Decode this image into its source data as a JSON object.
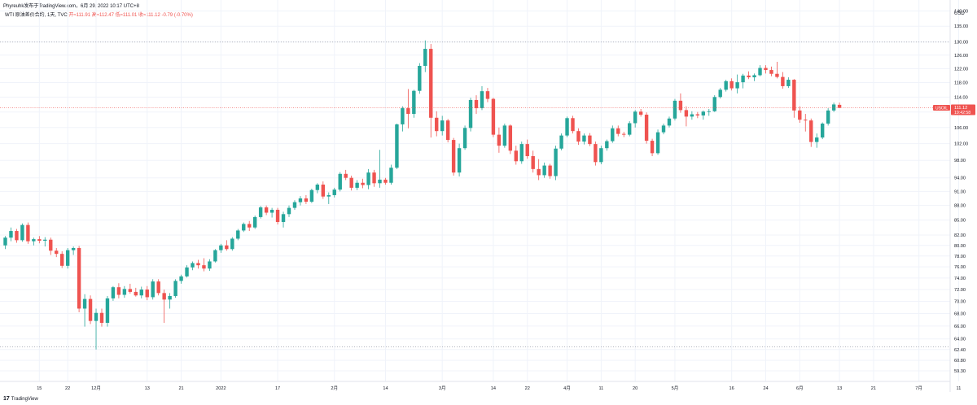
{
  "header": {
    "author_line": "Phyreuhk发布于TradingView.com，6月 29, 2022 10:17 UTC+8"
  },
  "legend": {
    "symbol": "WTI 原油差价合约, 1天, TVC",
    "ohlc": "开≈111.91 高≈112.47 低≈111.01 收≈111.12 -0.79 (-0.70%)"
  },
  "price_label": {
    "symbol": "USOIL",
    "value": "111.12",
    "countdown": "19:42:58"
  },
  "brand": {
    "logo": "17",
    "name": "TradingView"
  },
  "colors": {
    "up": "#26a69a",
    "down": "#ef5350",
    "grid": "#f0f3fa",
    "axis_text": "#131722",
    "dotted": "#b2b5be"
  },
  "chart_data": {
    "type": "candlestick",
    "currency": "USD",
    "y_axis_ticks": [
      59.3,
      60.8,
      62.4,
      64.0,
      66.0,
      68.0,
      70.0,
      72.0,
      74.0,
      76.0,
      78.0,
      80.0,
      82.0,
      85.0,
      88.0,
      91.0,
      94.0,
      98.0,
      102.0,
      106.0,
      110.0,
      114.0,
      118.0,
      122.0,
      126.0,
      130.0,
      135.0,
      140.0
    ],
    "y_axis_labels": [
      "59.30",
      "60.80",
      "62.40",
      "64.00",
      "66.00",
      "68.00",
      "70.00",
      "72.00",
      "74.00",
      "76.00",
      "78.00",
      "80.00",
      "82.00",
      "85.00",
      "88.00",
      "91.00",
      "94.00",
      "98.00",
      "102.00",
      "106.00",
      "110.00",
      "114.00",
      "118.00",
      "122.00",
      "126.00",
      "130.00",
      "135.00",
      "140.00"
    ],
    "y_range": [
      58.5,
      141.5
    ],
    "scale": "log",
    "x_axis_labels": [
      {
        "label": "15",
        "bar": 6
      },
      {
        "label": "22",
        "bar": 11
      },
      {
        "label": "12月",
        "bar": 16
      },
      {
        "label": "13",
        "bar": 25
      },
      {
        "label": "21",
        "bar": 31
      },
      {
        "label": "2022",
        "bar": 38
      },
      {
        "label": "17",
        "bar": 48
      },
      {
        "label": "2月",
        "bar": 58
      },
      {
        "label": "14",
        "bar": 67
      },
      {
        "label": "3月",
        "bar": 77
      },
      {
        "label": "14",
        "bar": 86
      },
      {
        "label": "22",
        "bar": 92
      },
      {
        "label": "4月",
        "bar": 99
      },
      {
        "label": "11",
        "bar": 105
      },
      {
        "label": "20",
        "bar": 111
      },
      {
        "label": "5月",
        "bar": 118
      },
      {
        "label": "16",
        "bar": 128
      },
      {
        "label": "24",
        "bar": 134
      },
      {
        "label": "6月",
        "bar": 140
      },
      {
        "label": "13",
        "bar": 147
      },
      {
        "label": "21",
        "bar": 153
      },
      {
        "label": "7月",
        "bar": 161
      },
      {
        "label": "11",
        "bar": 168
      }
    ],
    "horizontal_levels": [
      130.0,
      62.8
    ],
    "last_price": 111.12,
    "candles": [
      [
        80.0,
        81.8,
        79.3,
        81.5
      ],
      [
        81.5,
        83.5,
        80.8,
        82.8
      ],
      [
        82.8,
        83.2,
        80.5,
        81.0
      ],
      [
        81.0,
        84.3,
        80.7,
        84.0
      ],
      [
        84.0,
        84.5,
        80.3,
        80.8
      ],
      [
        80.8,
        81.5,
        80.0,
        81.2
      ],
      [
        81.2,
        81.8,
        80.4,
        80.9
      ],
      [
        80.9,
        81.6,
        79.8,
        81.1
      ],
      [
        81.1,
        81.5,
        78.2,
        79.0
      ],
      [
        79.0,
        79.5,
        77.8,
        78.4
      ],
      [
        78.4,
        78.9,
        75.8,
        76.2
      ],
      [
        76.2,
        79.5,
        75.7,
        79.1
      ],
      [
        79.1,
        79.8,
        78.2,
        79.5
      ],
      [
        79.5,
        79.9,
        68.2,
        68.8
      ],
      [
        68.8,
        71.2,
        65.9,
        70.4
      ],
      [
        70.4,
        71.0,
        66.3,
        66.8
      ],
      [
        66.8,
        68.8,
        62.4,
        68.1
      ],
      [
        68.1,
        68.8,
        65.9,
        66.5
      ],
      [
        66.5,
        70.9,
        65.9,
        70.5
      ],
      [
        70.5,
        72.6,
        70.1,
        72.4
      ],
      [
        72.4,
        73.1,
        70.5,
        71.1
      ],
      [
        71.1,
        72.6,
        70.6,
        72.1
      ],
      [
        72.1,
        73.0,
        71.3,
        71.6
      ],
      [
        71.6,
        72.3,
        70.8,
        71.0
      ],
      [
        71.0,
        72.5,
        70.5,
        72.0
      ],
      [
        72.0,
        72.6,
        70.2,
        70.7
      ],
      [
        70.7,
        73.8,
        70.3,
        73.4
      ],
      [
        73.4,
        73.8,
        71.0,
        71.4
      ],
      [
        71.4,
        72.0,
        66.5,
        70.3
      ],
      [
        70.3,
        71.4,
        68.8,
        70.9
      ],
      [
        70.9,
        73.8,
        70.6,
        73.5
      ],
      [
        73.5,
        74.6,
        73.0,
        74.3
      ],
      [
        74.3,
        76.3,
        74.1,
        75.9
      ],
      [
        75.9,
        77.0,
        75.4,
        76.7
      ],
      [
        76.7,
        77.3,
        75.7,
        76.3
      ],
      [
        76.3,
        77.6,
        75.2,
        75.7
      ],
      [
        75.7,
        77.4,
        75.3,
        77.0
      ],
      [
        77.0,
        79.3,
        76.8,
        79.1
      ],
      [
        79.1,
        80.3,
        78.6,
        80.0
      ],
      [
        80.0,
        81.0,
        79.0,
        79.3
      ],
      [
        79.3,
        81.6,
        79.0,
        81.3
      ],
      [
        81.3,
        83.2,
        81.0,
        82.9
      ],
      [
        82.9,
        84.5,
        82.6,
        84.2
      ],
      [
        84.2,
        84.8,
        82.8,
        83.5
      ],
      [
        83.5,
        85.9,
        83.2,
        85.6
      ],
      [
        85.6,
        87.9,
        85.3,
        87.6
      ],
      [
        87.6,
        88.0,
        86.0,
        86.5
      ],
      [
        86.5,
        87.5,
        85.5,
        87.1
      ],
      [
        87.1,
        87.5,
        84.1,
        84.6
      ],
      [
        84.6,
        86.7,
        83.5,
        86.2
      ],
      [
        86.2,
        88.0,
        85.6,
        87.5
      ],
      [
        87.5,
        89.1,
        87.1,
        88.7
      ],
      [
        88.7,
        90.0,
        88.0,
        89.5
      ],
      [
        89.5,
        90.2,
        88.3,
        88.8
      ],
      [
        88.8,
        91.6,
        88.5,
        91.3
      ],
      [
        91.3,
        92.8,
        90.6,
        92.5
      ],
      [
        92.5,
        93.2,
        89.4,
        89.9
      ],
      [
        89.9,
        90.8,
        88.3,
        90.2
      ],
      [
        90.2,
        91.8,
        89.7,
        91.4
      ],
      [
        91.4,
        95.3,
        91.0,
        94.9
      ],
      [
        94.9,
        95.8,
        93.5,
        94.0
      ],
      [
        94.0,
        94.5,
        91.2,
        91.8
      ],
      [
        91.8,
        93.5,
        91.3,
        92.9
      ],
      [
        92.9,
        93.8,
        91.7,
        92.4
      ],
      [
        92.4,
        96.0,
        91.5,
        95.2
      ],
      [
        95.2,
        95.8,
        92.0,
        92.8
      ],
      [
        92.8,
        100.5,
        91.8,
        93.6
      ],
      [
        93.6,
        94.0,
        92.5,
        92.9
      ],
      [
        92.9,
        97.0,
        92.5,
        96.3
      ],
      [
        96.3,
        107.0,
        96.0,
        106.8
      ],
      [
        106.8,
        111.5,
        105.0,
        111.0
      ],
      [
        111.0,
        116.2,
        105.8,
        109.5
      ],
      [
        109.5,
        116.0,
        108.5,
        115.7
      ],
      [
        115.7,
        123.6,
        114.9,
        122.8
      ],
      [
        122.8,
        130.5,
        121.0,
        127.9
      ],
      [
        127.9,
        129.4,
        103.5,
        108.5
      ],
      [
        108.5,
        110.2,
        103.8,
        105.1
      ],
      [
        105.1,
        109.0,
        104.0,
        107.8
      ],
      [
        107.8,
        108.2,
        102.3,
        102.9
      ],
      [
        102.9,
        103.4,
        94.5,
        95.2
      ],
      [
        95.2,
        102.0,
        94.3,
        100.9
      ],
      [
        100.9,
        106.5,
        100.5,
        105.9
      ],
      [
        105.9,
        113.8,
        105.0,
        113.2
      ],
      [
        113.2,
        114.5,
        109.5,
        111.0
      ],
      [
        111.0,
        117.0,
        110.5,
        115.6
      ],
      [
        115.6,
        116.5,
        112.6,
        113.5
      ],
      [
        113.5,
        113.8,
        103.6,
        104.2
      ],
      [
        104.2,
        106.0,
        99.8,
        101.5
      ],
      [
        101.5,
        107.0,
        101.0,
        106.5
      ],
      [
        106.5,
        106.8,
        99.5,
        100.3
      ],
      [
        100.3,
        101.5,
        97.0,
        97.8
      ],
      [
        97.8,
        102.5,
        97.2,
        101.9
      ],
      [
        101.9,
        103.0,
        98.4,
        99.0
      ],
      [
        99.0,
        100.3,
        95.2,
        96.0
      ],
      [
        96.0,
        98.3,
        93.5,
        94.6
      ],
      [
        94.6,
        97.5,
        94.0,
        96.8
      ],
      [
        96.8,
        97.2,
        93.8,
        94.4
      ],
      [
        94.4,
        101.5,
        93.5,
        100.8
      ],
      [
        100.8,
        104.5,
        100.4,
        104.0
      ],
      [
        104.0,
        108.8,
        103.6,
        108.4
      ],
      [
        108.4,
        109.0,
        104.5,
        105.1
      ],
      [
        105.1,
        105.8,
        101.7,
        102.5
      ],
      [
        102.5,
        104.5,
        101.8,
        104.0
      ],
      [
        104.0,
        104.6,
        101.4,
        101.9
      ],
      [
        101.9,
        102.5,
        96.8,
        97.6
      ],
      [
        97.6,
        101.5,
        97.1,
        100.9
      ],
      [
        100.9,
        103.0,
        100.3,
        102.6
      ],
      [
        102.6,
        106.5,
        102.2,
        105.8
      ],
      [
        105.8,
        106.5,
        103.8,
        104.4
      ],
      [
        104.4,
        104.9,
        103.6,
        104.2
      ],
      [
        104.2,
        107.6,
        103.8,
        107.1
      ],
      [
        107.1,
        110.5,
        106.0,
        110.1
      ],
      [
        110.1,
        110.8,
        108.8,
        109.3
      ],
      [
        109.3,
        109.9,
        102.0,
        102.7
      ],
      [
        102.7,
        103.2,
        99.0,
        99.7
      ],
      [
        99.7,
        105.5,
        99.3,
        104.8
      ],
      [
        104.8,
        107.0,
        104.3,
        106.5
      ],
      [
        106.5,
        108.8,
        106.0,
        108.3
      ],
      [
        108.3,
        113.5,
        107.8,
        113.0
      ],
      [
        113.0,
        115.0,
        109.8,
        110.5
      ],
      [
        110.5,
        111.5,
        106.3,
        108.8
      ],
      [
        108.8,
        110.2,
        108.0,
        109.4
      ],
      [
        109.4,
        110.0,
        108.4,
        109.1
      ],
      [
        109.1,
        110.4,
        108.0,
        110.1
      ],
      [
        110.1,
        110.8,
        109.0,
        110.2
      ],
      [
        110.2,
        114.5,
        110.0,
        114.0
      ],
      [
        114.0,
        116.5,
        113.6,
        116.0
      ],
      [
        116.0,
        118.8,
        115.5,
        118.4
      ],
      [
        118.4,
        119.2,
        115.8,
        116.4
      ],
      [
        116.4,
        120.3,
        115.0,
        118.1
      ],
      [
        118.1,
        120.5,
        116.4,
        120.0
      ],
      [
        120.0,
        121.2,
        119.0,
        119.5
      ],
      [
        119.5,
        120.6,
        118.4,
        120.1
      ],
      [
        120.1,
        123.0,
        119.8,
        122.2
      ],
      [
        122.2,
        123.0,
        120.6,
        121.6
      ],
      [
        121.6,
        122.6,
        119.8,
        120.5
      ],
      [
        120.5,
        124.0,
        119.2,
        119.6
      ],
      [
        119.6,
        121.0,
        116.3,
        117.0
      ],
      [
        117.0,
        119.5,
        116.5,
        118.8
      ],
      [
        118.8,
        119.0,
        108.5,
        110.4
      ],
      [
        110.4,
        111.5,
        107.2,
        108.0
      ],
      [
        108.0,
        109.5,
        105.0,
        107.8
      ],
      [
        107.8,
        108.3,
        101.2,
        102.4
      ],
      [
        102.4,
        104.5,
        101.0,
        103.5
      ],
      [
        103.5,
        107.3,
        103.1,
        107.0
      ],
      [
        107.0,
        111.0,
        106.5,
        110.4
      ],
      [
        110.4,
        112.5,
        110.0,
        112.0
      ],
      [
        111.9,
        112.5,
        111.0,
        111.1
      ]
    ]
  }
}
